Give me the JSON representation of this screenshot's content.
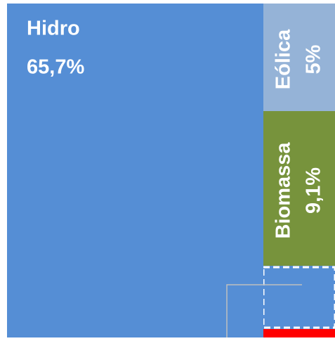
{
  "chart_data": {
    "type": "treemap",
    "categories": [
      "Hidro",
      "Eólica",
      "Biomassa"
    ],
    "values": [
      65.7,
      5,
      9.1
    ],
    "value_labels": [
      "65,7%",
      "5%",
      "9,1%"
    ],
    "colors": [
      "#558ed5",
      "#95b3d7",
      "#77933c"
    ]
  }
}
